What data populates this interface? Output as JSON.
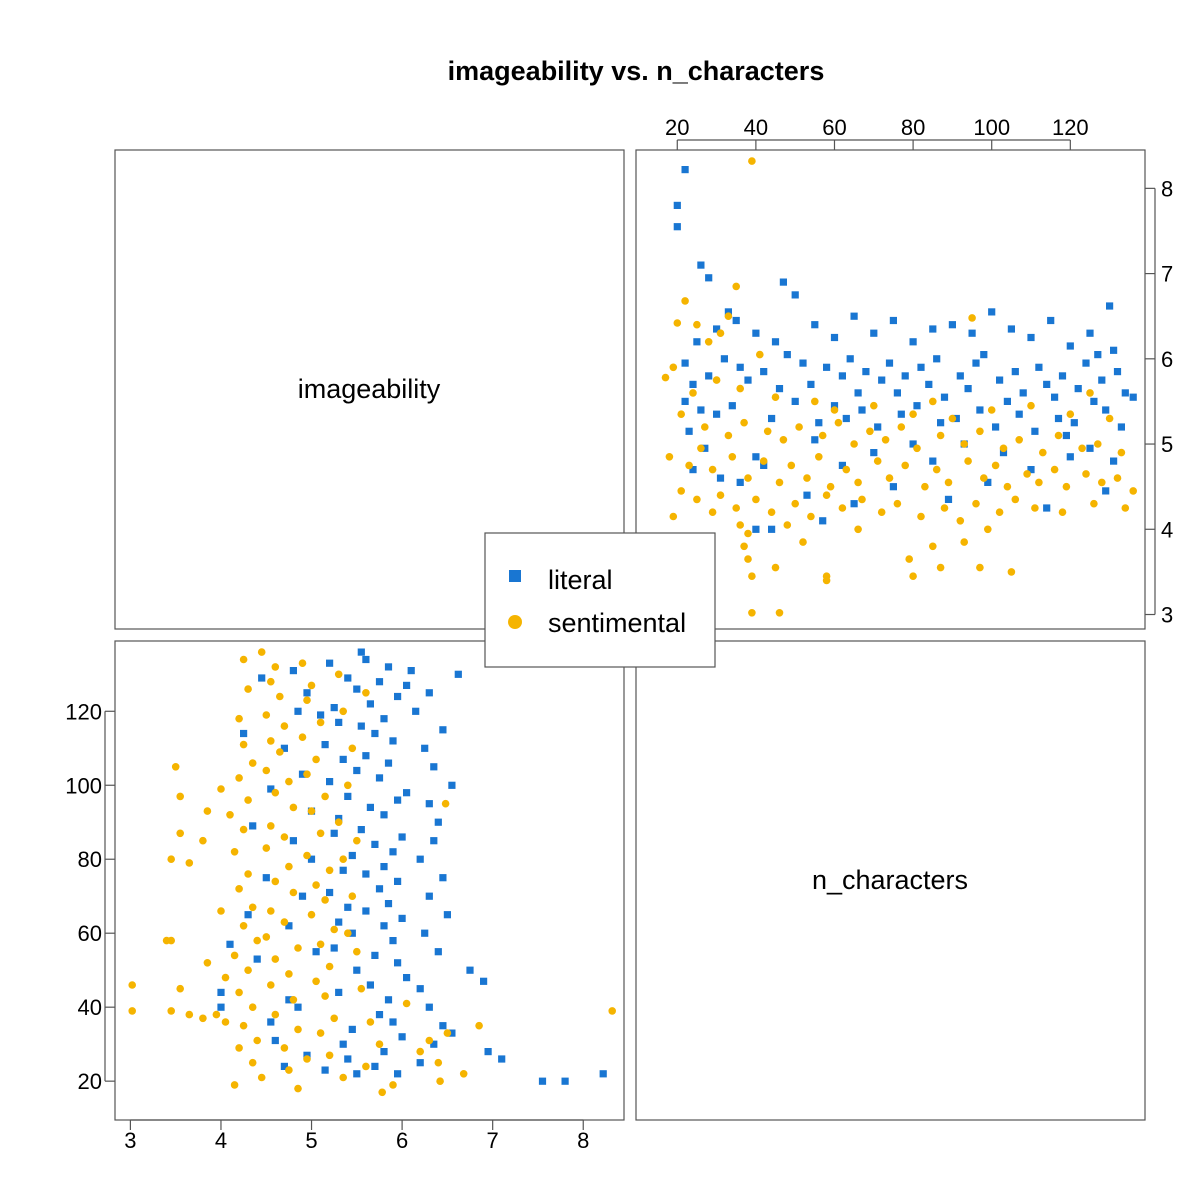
{
  "chart_data": {
    "type": "scatter",
    "title": "imageability vs. n_characters",
    "variables": [
      "imageability",
      "n_characters"
    ],
    "axes": {
      "imageability": {
        "lim": [
          2.83,
          8.45
        ],
        "ticks": [
          3,
          4,
          5,
          6,
          7,
          8
        ]
      },
      "n_characters": {
        "lim": [
          9.5,
          139
        ],
        "ticks": [
          20,
          40,
          60,
          80,
          100,
          120
        ]
      }
    },
    "grid": false,
    "legend": {
      "position": "center",
      "entries": [
        "literal",
        "sentimental"
      ]
    },
    "series": [
      {
        "name": "literal",
        "color": "#1976d2",
        "marker": "square",
        "points": [
          [
            20,
            7.55
          ],
          [
            20,
            7.8
          ],
          [
            22,
            8.22
          ],
          [
            26,
            7.1
          ],
          [
            28,
            6.95
          ],
          [
            33,
            6.55
          ],
          [
            47,
            6.9
          ],
          [
            50,
            6.75
          ],
          [
            25,
            6.2
          ],
          [
            30,
            6.35
          ],
          [
            35,
            6.45
          ],
          [
            40,
            6.3
          ],
          [
            45,
            6.2
          ],
          [
            55,
            6.4
          ],
          [
            60,
            6.25
          ],
          [
            65,
            6.5
          ],
          [
            70,
            6.3
          ],
          [
            75,
            6.45
          ],
          [
            80,
            6.2
          ],
          [
            85,
            6.35
          ],
          [
            90,
            6.4
          ],
          [
            95,
            6.3
          ],
          [
            100,
            6.55
          ],
          [
            105,
            6.35
          ],
          [
            110,
            6.25
          ],
          [
            115,
            6.45
          ],
          [
            125,
            6.3
          ],
          [
            130,
            6.62
          ],
          [
            120,
            6.15
          ],
          [
            98,
            6.05
          ],
          [
            22,
            5.95
          ],
          [
            24,
            5.7
          ],
          [
            28,
            5.8
          ],
          [
            32,
            6.0
          ],
          [
            36,
            5.9
          ],
          [
            38,
            5.75
          ],
          [
            42,
            5.85
          ],
          [
            46,
            5.65
          ],
          [
            48,
            6.05
          ],
          [
            52,
            5.95
          ],
          [
            54,
            5.7
          ],
          [
            58,
            5.9
          ],
          [
            62,
            5.8
          ],
          [
            64,
            6.0
          ],
          [
            66,
            5.6
          ],
          [
            68,
            5.85
          ],
          [
            72,
            5.75
          ],
          [
            74,
            5.95
          ],
          [
            76,
            5.6
          ],
          [
            78,
            5.8
          ],
          [
            82,
            5.9
          ],
          [
            84,
            5.7
          ],
          [
            86,
            6.0
          ],
          [
            88,
            5.55
          ],
          [
            92,
            5.8
          ],
          [
            94,
            5.65
          ],
          [
            96,
            5.95
          ],
          [
            102,
            5.75
          ],
          [
            104,
            5.5
          ],
          [
            106,
            5.85
          ],
          [
            108,
            5.6
          ],
          [
            112,
            5.9
          ],
          [
            114,
            5.7
          ],
          [
            116,
            5.55
          ],
          [
            118,
            5.8
          ],
          [
            122,
            5.65
          ],
          [
            124,
            5.95
          ],
          [
            126,
            5.5
          ],
          [
            128,
            5.75
          ],
          [
            132,
            5.85
          ],
          [
            134,
            5.6
          ],
          [
            136,
            5.55
          ],
          [
            131,
            6.1
          ],
          [
            127,
            6.05
          ],
          [
            22,
            5.5
          ],
          [
            26,
            5.4
          ],
          [
            30,
            5.35
          ],
          [
            34,
            5.45
          ],
          [
            44,
            5.3
          ],
          [
            50,
            5.5
          ],
          [
            56,
            5.25
          ],
          [
            60,
            5.45
          ],
          [
            63,
            5.3
          ],
          [
            67,
            5.4
          ],
          [
            71,
            5.2
          ],
          [
            77,
            5.35
          ],
          [
            81,
            5.45
          ],
          [
            87,
            5.25
          ],
          [
            91,
            5.3
          ],
          [
            97,
            5.4
          ],
          [
            101,
            5.2
          ],
          [
            107,
            5.35
          ],
          [
            111,
            5.15
          ],
          [
            117,
            5.3
          ],
          [
            121,
            5.25
          ],
          [
            129,
            5.4
          ],
          [
            133,
            5.2
          ],
          [
            119,
            5.1
          ],
          [
            23,
            5.15
          ],
          [
            24,
            4.7
          ],
          [
            27,
            4.95
          ],
          [
            40,
            4.85
          ],
          [
            42,
            4.75
          ],
          [
            55,
            5.05
          ],
          [
            62,
            4.75
          ],
          [
            70,
            4.9
          ],
          [
            80,
            5.0
          ],
          [
            85,
            4.8
          ],
          [
            93,
            5.0
          ],
          [
            103,
            4.9
          ],
          [
            110,
            4.7
          ],
          [
            120,
            4.85
          ],
          [
            125,
            4.95
          ],
          [
            131,
            4.8
          ],
          [
            31,
            4.6
          ],
          [
            40,
            4.0
          ],
          [
            44,
            4.0
          ],
          [
            57,
            4.1
          ],
          [
            65,
            4.3
          ],
          [
            75,
            4.5
          ],
          [
            89,
            4.35
          ],
          [
            99,
            4.55
          ],
          [
            114,
            4.25
          ],
          [
            129,
            4.45
          ],
          [
            53,
            4.4
          ],
          [
            36,
            4.55
          ]
        ]
      },
      {
        "name": "sentimental",
        "color": "#f5b400",
        "marker": "circle",
        "points": [
          [
            39,
            8.32
          ],
          [
            22,
            6.68
          ],
          [
            35,
            6.85
          ],
          [
            33,
            6.5
          ],
          [
            95,
            6.48
          ],
          [
            20,
            6.42
          ],
          [
            25,
            6.4
          ],
          [
            28,
            6.2
          ],
          [
            31,
            6.3
          ],
          [
            41,
            6.05
          ],
          [
            17,
            5.78
          ],
          [
            19,
            5.9
          ],
          [
            30,
            5.75
          ],
          [
            24,
            5.6
          ],
          [
            36,
            5.65
          ],
          [
            45,
            5.55
          ],
          [
            55,
            5.5
          ],
          [
            60,
            5.4
          ],
          [
            70,
            5.45
          ],
          [
            80,
            5.35
          ],
          [
            85,
            5.5
          ],
          [
            90,
            5.3
          ],
          [
            100,
            5.4
          ],
          [
            110,
            5.45
          ],
          [
            120,
            5.35
          ],
          [
            130,
            5.3
          ],
          [
            125,
            5.6
          ],
          [
            21,
            5.35
          ],
          [
            27,
            5.2
          ],
          [
            33,
            5.1
          ],
          [
            37,
            5.25
          ],
          [
            43,
            5.15
          ],
          [
            47,
            5.05
          ],
          [
            51,
            5.2
          ],
          [
            57,
            5.1
          ],
          [
            61,
            5.25
          ],
          [
            65,
            5.0
          ],
          [
            69,
            5.15
          ],
          [
            73,
            5.05
          ],
          [
            77,
            5.2
          ],
          [
            81,
            4.95
          ],
          [
            87,
            5.1
          ],
          [
            93,
            5.0
          ],
          [
            97,
            5.15
          ],
          [
            103,
            4.95
          ],
          [
            107,
            5.05
          ],
          [
            113,
            4.9
          ],
          [
            117,
            5.1
          ],
          [
            123,
            4.95
          ],
          [
            127,
            5.0
          ],
          [
            133,
            4.9
          ],
          [
            18,
            4.85
          ],
          [
            23,
            4.75
          ],
          [
            26,
            4.95
          ],
          [
            29,
            4.7
          ],
          [
            34,
            4.85
          ],
          [
            38,
            4.6
          ],
          [
            42,
            4.8
          ],
          [
            46,
            4.55
          ],
          [
            49,
            4.75
          ],
          [
            53,
            4.6
          ],
          [
            56,
            4.85
          ],
          [
            59,
            4.5
          ],
          [
            63,
            4.7
          ],
          [
            66,
            4.55
          ],
          [
            71,
            4.8
          ],
          [
            74,
            4.6
          ],
          [
            78,
            4.75
          ],
          [
            83,
            4.5
          ],
          [
            86,
            4.7
          ],
          [
            89,
            4.55
          ],
          [
            94,
            4.8
          ],
          [
            98,
            4.6
          ],
          [
            101,
            4.75
          ],
          [
            104,
            4.5
          ],
          [
            109,
            4.65
          ],
          [
            112,
            4.55
          ],
          [
            116,
            4.7
          ],
          [
            119,
            4.5
          ],
          [
            124,
            4.65
          ],
          [
            128,
            4.55
          ],
          [
            132,
            4.6
          ],
          [
            136,
            4.45
          ],
          [
            21,
            4.45
          ],
          [
            25,
            4.35
          ],
          [
            31,
            4.4
          ],
          [
            35,
            4.25
          ],
          [
            40,
            4.35
          ],
          [
            44,
            4.2
          ],
          [
            50,
            4.3
          ],
          [
            54,
            4.15
          ],
          [
            58,
            4.4
          ],
          [
            62,
            4.25
          ],
          [
            67,
            4.35
          ],
          [
            72,
            4.2
          ],
          [
            76,
            4.3
          ],
          [
            82,
            4.15
          ],
          [
            88,
            4.25
          ],
          [
            92,
            4.1
          ],
          [
            96,
            4.3
          ],
          [
            102,
            4.2
          ],
          [
            106,
            4.35
          ],
          [
            111,
            4.25
          ],
          [
            118,
            4.2
          ],
          [
            126,
            4.3
          ],
          [
            134,
            4.25
          ],
          [
            19,
            4.15
          ],
          [
            29,
            4.2
          ],
          [
            36,
            4.05
          ],
          [
            38,
            3.95
          ],
          [
            48,
            4.05
          ],
          [
            52,
            3.85
          ],
          [
            66,
            4.0
          ],
          [
            79,
            3.65
          ],
          [
            85,
            3.8
          ],
          [
            93,
            3.85
          ],
          [
            99,
            4.0
          ],
          [
            37,
            3.8
          ],
          [
            38,
            3.65
          ],
          [
            39,
            3.45
          ],
          [
            45,
            3.55
          ],
          [
            58,
            3.45
          ],
          [
            58,
            3.4
          ],
          [
            80,
            3.45
          ],
          [
            87,
            3.55
          ],
          [
            97,
            3.55
          ],
          [
            105,
            3.5
          ],
          [
            39,
            3.02
          ],
          [
            46,
            3.02
          ]
        ]
      }
    ]
  },
  "colors": {
    "panel_border": "#555555",
    "literal": "#1976d2",
    "sentimental": "#f5b400"
  }
}
